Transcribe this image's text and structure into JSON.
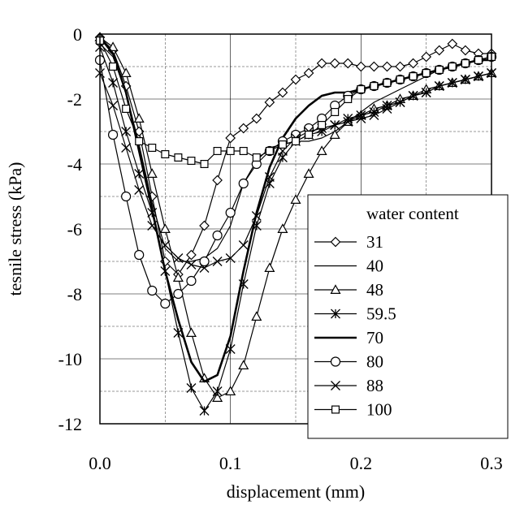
{
  "chart_data": {
    "type": "line",
    "xlabel": "displacement (mm)",
    "ylabel": "tesnile stress (kPa)",
    "xlim": [
      0,
      0.3
    ],
    "ylim": [
      -12,
      0
    ],
    "xticks": [
      "0.0",
      "0.1",
      "0.2",
      "0.3"
    ],
    "yticks": [
      "0",
      "-2",
      "-4",
      "-6",
      "-8",
      "-10",
      "-12"
    ],
    "grid": true,
    "legend_title": "water content",
    "legend_position": "bottom-right",
    "series": [
      {
        "name": "31",
        "marker": "diamond",
        "x": [
          0,
          0.01,
          0.02,
          0.03,
          0.04,
          0.05,
          0.06,
          0.07,
          0.08,
          0.09,
          0.1,
          0.11,
          0.12,
          0.13,
          0.14,
          0.15,
          0.16,
          0.17,
          0.18,
          0.19,
          0.2,
          0.21,
          0.22,
          0.23,
          0.24,
          0.25,
          0.26,
          0.27,
          0.28,
          0.29,
          0.3
        ],
        "y": [
          -0.1,
          -0.5,
          -1.6,
          -3.0,
          -5.0,
          -7.0,
          -7.4,
          -6.8,
          -5.9,
          -4.5,
          -3.2,
          -2.9,
          -2.6,
          -2.1,
          -1.8,
          -1.4,
          -1.2,
          -0.9,
          -0.9,
          -0.9,
          -1.0,
          -1.0,
          -1.0,
          -1.0,
          -0.9,
          -0.7,
          -0.5,
          -0.3,
          -0.5,
          -0.6,
          -0.6
        ]
      },
      {
        "name": "40",
        "marker": "none",
        "x": [
          0,
          0.01,
          0.02,
          0.03,
          0.04,
          0.05,
          0.06,
          0.07,
          0.08,
          0.09,
          0.1,
          0.11,
          0.12,
          0.13,
          0.14,
          0.15,
          0.16,
          0.17,
          0.18,
          0.19,
          0.2,
          0.21,
          0.22,
          0.23,
          0.24,
          0.25,
          0.26,
          0.27,
          0.28,
          0.29,
          0.3
        ],
        "y": [
          -0.3,
          -0.7,
          -1.8,
          -3.4,
          -5.2,
          -6.6,
          -7.0,
          -7.0,
          -6.9,
          -6.6,
          -5.9,
          -4.6,
          -3.9,
          -3.5,
          -3.4,
          -3.3,
          -3.3,
          -3.2,
          -3.0,
          -2.7,
          -2.4,
          -2.1,
          -1.9,
          -1.7,
          -1.5,
          -1.3,
          -1.1,
          -1.0,
          -0.9,
          -0.8,
          -0.7
        ]
      },
      {
        "name": "48",
        "marker": "triangle",
        "x": [
          0,
          0.01,
          0.02,
          0.03,
          0.04,
          0.05,
          0.06,
          0.07,
          0.08,
          0.09,
          0.1,
          0.11,
          0.12,
          0.13,
          0.14,
          0.15,
          0.16,
          0.17,
          0.18,
          0.19,
          0.2,
          0.21,
          0.22,
          0.23,
          0.24,
          0.25,
          0.26,
          0.27,
          0.28,
          0.29,
          0.3
        ],
        "y": [
          -0.1,
          -0.4,
          -1.2,
          -2.6,
          -4.3,
          -6.0,
          -7.5,
          -9.2,
          -10.6,
          -11.2,
          -11.0,
          -10.2,
          -8.7,
          -7.2,
          -6.0,
          -5.1,
          -4.3,
          -3.6,
          -3.1,
          -2.7,
          -2.5,
          -2.3,
          -2.2,
          -2.0,
          -1.9,
          -1.7,
          -1.6,
          -1.5,
          -1.4,
          -1.3,
          -1.2
        ]
      },
      {
        "name": "59.5",
        "marker": "star",
        "x": [
          0,
          0.01,
          0.02,
          0.03,
          0.04,
          0.05,
          0.06,
          0.07,
          0.08,
          0.09,
          0.1,
          0.11,
          0.12,
          0.13,
          0.14,
          0.15,
          0.16,
          0.17,
          0.18,
          0.19,
          0.2,
          0.21,
          0.22,
          0.23,
          0.24,
          0.25,
          0.26,
          0.27,
          0.28,
          0.29,
          0.3
        ],
        "y": [
          -0.4,
          -1.5,
          -3.0,
          -4.3,
          -5.5,
          -7.3,
          -9.2,
          -10.9,
          -11.6,
          -11.0,
          -9.7,
          -7.7,
          -5.9,
          -4.6,
          -3.8,
          -3.3,
          -3.1,
          -3.0,
          -2.8,
          -2.6,
          -2.5,
          -2.4,
          -2.2,
          -2.1,
          -1.9,
          -1.8,
          -1.6,
          -1.5,
          -1.4,
          -1.3,
          -1.2
        ]
      },
      {
        "name": "70",
        "marker": "none",
        "x": [
          0,
          0.01,
          0.02,
          0.03,
          0.04,
          0.05,
          0.06,
          0.07,
          0.08,
          0.09,
          0.1,
          0.11,
          0.12,
          0.13,
          0.14,
          0.15,
          0.16,
          0.17,
          0.18,
          0.19,
          0.2,
          0.21,
          0.22,
          0.23,
          0.24,
          0.25,
          0.26,
          0.27,
          0.28,
          0.29,
          0.3
        ],
        "y": [
          -0.1,
          -0.6,
          -1.8,
          -3.6,
          -5.4,
          -7.3,
          -8.8,
          -10.1,
          -10.7,
          -10.5,
          -9.3,
          -7.3,
          -5.5,
          -4.1,
          -3.2,
          -2.6,
          -2.2,
          -1.9,
          -1.8,
          -1.8,
          -1.7,
          -1.6,
          -1.5,
          -1.4,
          -1.3,
          -1.2,
          -1.1,
          -1.0,
          -0.9,
          -0.8,
          -0.8
        ]
      },
      {
        "name": "80",
        "marker": "circle",
        "x": [
          0,
          0.01,
          0.02,
          0.03,
          0.04,
          0.05,
          0.06,
          0.07,
          0.08,
          0.09,
          0.1,
          0.11,
          0.12,
          0.13,
          0.14,
          0.15,
          0.16,
          0.17,
          0.18,
          0.19,
          0.2,
          0.21,
          0.22,
          0.23,
          0.24,
          0.25,
          0.26,
          0.27,
          0.28,
          0.29,
          0.3
        ],
        "y": [
          -0.8,
          -3.1,
          -5.0,
          -6.8,
          -7.9,
          -8.3,
          -8.0,
          -7.6,
          -7.0,
          -6.2,
          -5.5,
          -4.6,
          -4.0,
          -3.6,
          -3.3,
          -3.1,
          -2.9,
          -2.6,
          -2.2,
          -1.9,
          -1.7,
          -1.6,
          -1.5,
          -1.4,
          -1.3,
          -1.2,
          -1.1,
          -1.0,
          -0.9,
          -0.8,
          -0.7
        ]
      },
      {
        "name": "88",
        "marker": "x",
        "x": [
          0,
          0.01,
          0.02,
          0.03,
          0.04,
          0.05,
          0.06,
          0.07,
          0.08,
          0.09,
          0.1,
          0.11,
          0.12,
          0.13,
          0.14,
          0.15,
          0.16,
          0.17,
          0.18,
          0.19,
          0.2,
          0.21,
          0.22,
          0.23,
          0.24,
          0.25,
          0.26,
          0.27,
          0.28,
          0.29,
          0.3
        ],
        "y": [
          -1.2,
          -2.2,
          -3.5,
          -4.8,
          -5.9,
          -6.5,
          -6.9,
          -7.1,
          -7.2,
          -7.0,
          -6.9,
          -6.5,
          -5.6,
          -4.4,
          -3.6,
          -3.2,
          -3.0,
          -2.9,
          -2.8,
          -2.7,
          -2.6,
          -2.5,
          -2.3,
          -2.1,
          -1.9,
          -1.8,
          -1.6,
          -1.5,
          -1.4,
          -1.3,
          -1.2
        ]
      },
      {
        "name": "100",
        "marker": "square",
        "x": [
          0,
          0.01,
          0.02,
          0.03,
          0.04,
          0.05,
          0.06,
          0.07,
          0.08,
          0.09,
          0.1,
          0.11,
          0.12,
          0.13,
          0.14,
          0.15,
          0.16,
          0.17,
          0.18,
          0.19,
          0.2,
          0.21,
          0.22,
          0.23,
          0.24,
          0.25,
          0.26,
          0.27,
          0.28,
          0.29,
          0.3
        ],
        "y": [
          -0.2,
          -1.0,
          -2.3,
          -3.3,
          -3.5,
          -3.7,
          -3.8,
          -3.9,
          -4.0,
          -3.6,
          -3.6,
          -3.6,
          -3.8,
          -3.6,
          -3.4,
          -3.3,
          -3.1,
          -2.8,
          -2.4,
          -2.0,
          -1.7,
          -1.6,
          -1.5,
          -1.4,
          -1.3,
          -1.2,
          -1.1,
          -1.0,
          -0.9,
          -0.8,
          -0.7
        ]
      }
    ]
  }
}
